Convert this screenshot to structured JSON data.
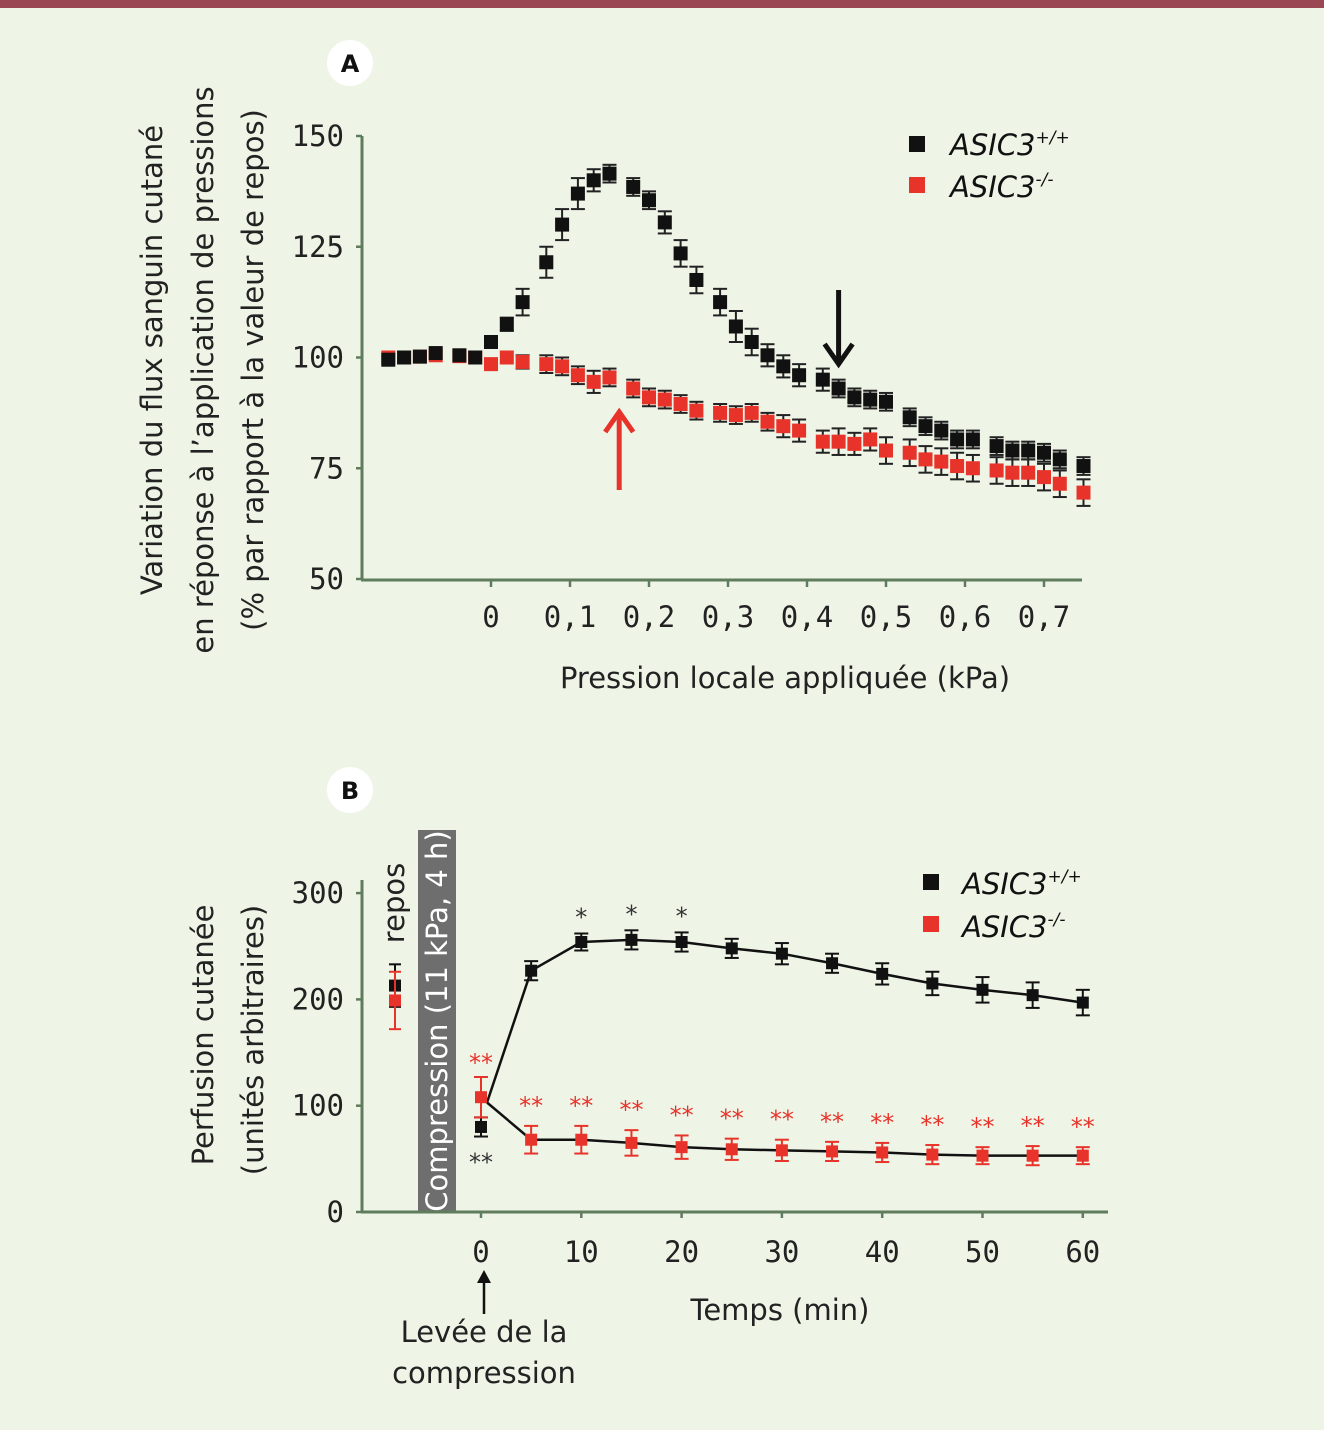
{
  "colors": {
    "wildtype": "#111111",
    "knockout": "#e8332a",
    "axis": "#5f7c5c",
    "compression_band": "#6e6e6e",
    "top_bar": "#9a4753",
    "background": "#eef5e7"
  },
  "chart_data": [
    {
      "panel": "A",
      "type": "scatter",
      "xlabel": "Pression locale appliquée (kPa)",
      "ylabel_lines": [
        "Variation du flux sanguin cutané",
        "en réponse à l’application de pressions",
        "(% par rapport à la valeur de repos)"
      ],
      "xlim": [
        -0.16,
        0.75
      ],
      "ylim": [
        50,
        150
      ],
      "x_ticks": [
        "0",
        "0,1",
        "0,2",
        "0,3",
        "0,4",
        "0,5",
        "0,6",
        "0,7"
      ],
      "x_tick_values": [
        0,
        0.1,
        0.2,
        0.3,
        0.4,
        0.5,
        0.6,
        0.7
      ],
      "y_ticks": [
        "50",
        "75",
        "100",
        "125",
        "150"
      ],
      "y_tick_values": [
        50,
        75,
        100,
        125,
        150
      ],
      "legend_placement": "top-right",
      "x": [
        -0.13,
        -0.11,
        -0.09,
        -0.07,
        -0.04,
        -0.02,
        0,
        0.02,
        0.04,
        0.07,
        0.09,
        0.11,
        0.13,
        0.15,
        0.18,
        0.2,
        0.22,
        0.24,
        0.26,
        0.29,
        0.31,
        0.33,
        0.35,
        0.37,
        0.39,
        0.42,
        0.44,
        0.46,
        0.48,
        0.5,
        0.53,
        0.55,
        0.57,
        0.59,
        0.61,
        0.64,
        0.66,
        0.68,
        0.7,
        0.72,
        0.75
      ],
      "series": [
        {
          "name": "ASIC3",
          "superscript": "+/+",
          "color": "#111111",
          "values": [
            99.5,
            100,
            100.2,
            101,
            100.5,
            100,
            103.5,
            107.5,
            112.5,
            121.5,
            130,
            137,
            140,
            141.5,
            138.5,
            135.5,
            130.5,
            123.5,
            117.5,
            112.5,
            107,
            103.5,
            100.5,
            98,
            96,
            95,
            93,
            91,
            90.5,
            90,
            86.5,
            84.5,
            83.5,
            81.5,
            81.5,
            80,
            79,
            79,
            78.5,
            77,
            75.5
          ],
          "error": [
            0.5,
            0.5,
            0.5,
            0.5,
            0.5,
            0.5,
            1,
            1.5,
            3,
            3.5,
            3.5,
            3.5,
            2.5,
            2,
            2,
            2,
            2.5,
            3,
            3,
            3,
            3.5,
            3,
            2.5,
            2.5,
            2.5,
            2.5,
            2,
            2,
            2,
            2,
            2,
            2,
            2,
            2,
            2,
            2,
            2,
            2,
            2,
            2,
            2
          ]
        },
        {
          "name": "ASIC3",
          "superscript": "-/-",
          "color": "#e8332a",
          "values": [
            100,
            100,
            100.2,
            100.5,
            100.3,
            100,
            98.5,
            100,
            99,
            98.5,
            98,
            96,
            94.5,
            95.5,
            93,
            91,
            90.5,
            89.5,
            88,
            87.5,
            87,
            87.5,
            85.5,
            84.5,
            83.5,
            81,
            81,
            80.5,
            81.5,
            79,
            78.5,
            77,
            76.5,
            75.5,
            75,
            74.5,
            74,
            74,
            73,
            71.5,
            69.5
          ],
          "error": [
            0.5,
            0.5,
            0.5,
            0.5,
            0.5,
            0.5,
            1,
            0.5,
            1.5,
            2,
            2,
            2,
            2.5,
            2,
            2,
            2,
            2,
            2,
            2,
            2,
            2,
            2,
            2,
            2.5,
            2.5,
            2.5,
            3,
            2.5,
            2.5,
            3,
            3,
            3,
            3,
            3,
            3,
            3,
            3,
            3,
            3,
            3,
            3
          ]
        }
      ],
      "annotations": [
        {
          "type": "arrow-down",
          "series": "ASIC3+/+",
          "x": 0.44
        },
        {
          "type": "arrow-up",
          "series": "ASIC3-/-",
          "x": 0.18
        }
      ]
    },
    {
      "panel": "B",
      "type": "line",
      "xlabel": "Temps (min)",
      "ylabel_lines": [
        "Perfusion cutanée",
        "(unités arbitraires)"
      ],
      "xlim": [
        -12,
        62
      ],
      "ylim": [
        0,
        300
      ],
      "x_ticks": [
        "0",
        "10",
        "20",
        "30",
        "40",
        "50",
        "60"
      ],
      "x_tick_values": [
        0,
        10,
        20,
        30,
        40,
        50,
        60
      ],
      "y_ticks": [
        "0",
        "100",
        "200",
        "300"
      ],
      "y_tick_values": [
        0,
        100,
        200,
        300
      ],
      "legend_placement": "top-right",
      "baseline_label": "repos",
      "compression_label": "Compression (11 kPa, 4 h)",
      "release_label_lines": [
        "Levée de la",
        "compression"
      ],
      "x": [
        0,
        5,
        10,
        15,
        20,
        25,
        30,
        35,
        40,
        45,
        50,
        55,
        60
      ],
      "series": [
        {
          "name": "ASIC3",
          "superscript": "+/+",
          "color": "#111111",
          "rest": 213,
          "rest_error": 20,
          "values": [
            80,
            227,
            254,
            256,
            254,
            248,
            243,
            234,
            224,
            215,
            209,
            204,
            197
          ],
          "error": [
            9,
            9,
            8,
            9,
            9,
            9,
            10,
            9,
            10,
            11,
            12,
            12,
            12
          ],
          "significance": [
            "**",
            "",
            "*",
            "*",
            "*",
            "",
            "",
            "",
            "",
            "",
            "",
            "",
            ""
          ]
        },
        {
          "name": "ASIC3",
          "superscript": "-/-",
          "color": "#e8332a",
          "rest": 199,
          "rest_error": 27,
          "values": [
            108,
            68,
            68,
            65,
            61,
            59,
            58,
            57,
            56,
            54,
            53,
            53,
            53
          ],
          "error": [
            19,
            13,
            13,
            12,
            11,
            10,
            10,
            9,
            9,
            9,
            8,
            9,
            8
          ],
          "significance": [
            "**",
            "**",
            "**",
            "**",
            "**",
            "**",
            "**",
            "**",
            "**",
            "**",
            "**",
            "**",
            "**"
          ]
        }
      ]
    }
  ]
}
